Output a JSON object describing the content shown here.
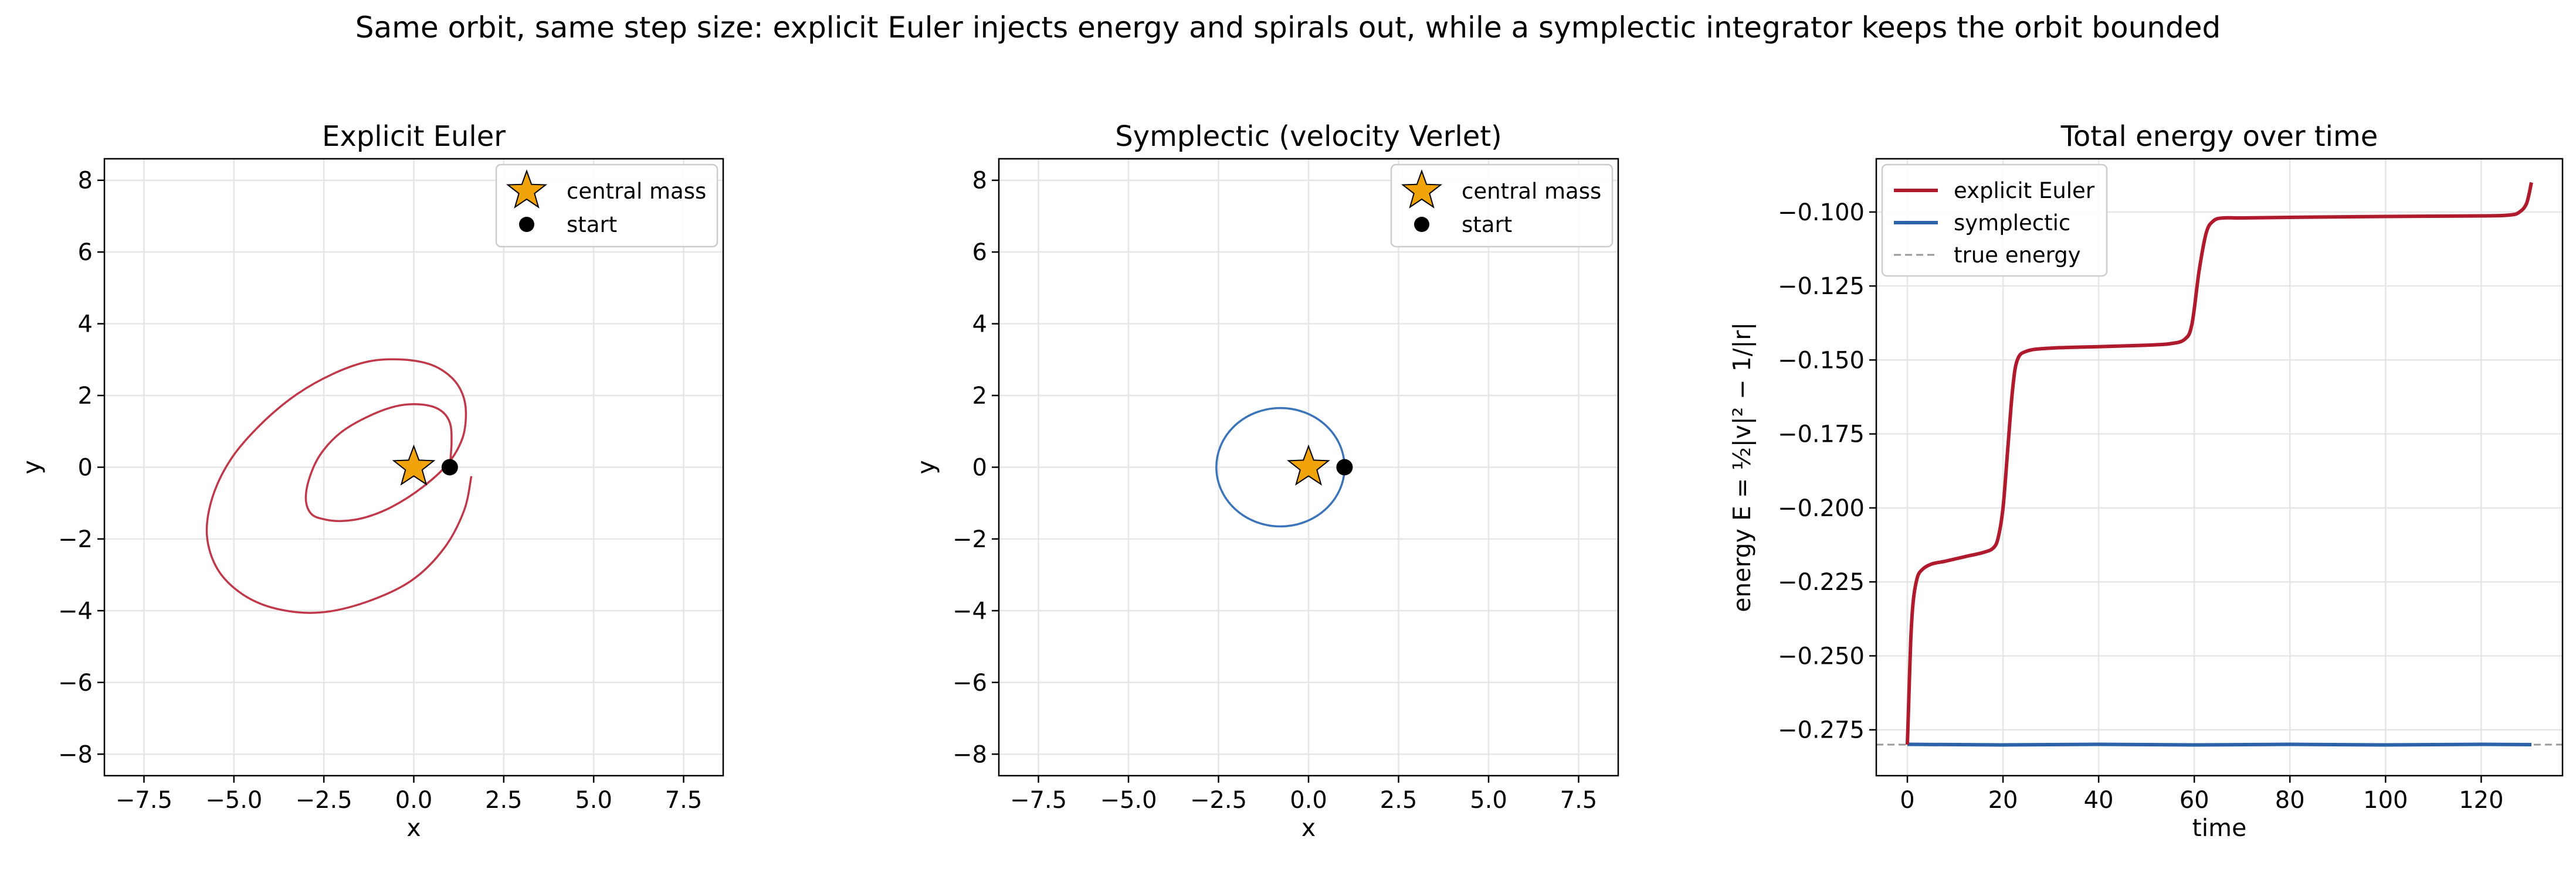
{
  "suptitle": "Same orbit, same step size: explicit Euler injects energy and spirals out, while a symplectic integrator keeps the orbit bounded",
  "colors": {
    "euler_orbit": "#c0394a",
    "symplectic_orbit": "#3b74b8",
    "euler_energy": "#b01a2d",
    "symplectic_energy": "#2c62a8",
    "true_energy": "#999999",
    "star": "#f0a30a",
    "grid": "#e6e6e6"
  },
  "chart_data": [
    {
      "type": "line",
      "title": "Explicit Euler",
      "xlabel": "x",
      "ylabel": "y",
      "xlim": [
        -8.6,
        8.6
      ],
      "ylim": [
        -8.6,
        8.6
      ],
      "xticks": [
        -7.5,
        -5.0,
        -2.5,
        0.0,
        2.5,
        5.0,
        7.5
      ],
      "xtick_labels": [
        "−7.5",
        "−5.0",
        "−2.5",
        "0.0",
        "2.5",
        "5.0",
        "7.5"
      ],
      "yticks": [
        -8,
        -6,
        -4,
        -2,
        0,
        2,
        4,
        6,
        8
      ],
      "ytick_labels": [
        "−8",
        "−6",
        "−4",
        "−2",
        "0",
        "2",
        "4",
        "6",
        "8"
      ],
      "grid": true,
      "legend": {
        "placement": "top-right",
        "entries": [
          "central mass",
          "start"
        ]
      },
      "central_mass": [
        0,
        0
      ],
      "start": [
        1,
        0
      ],
      "orbit": {
        "name": "explicit Euler",
        "x": [
          1.0,
          1.05,
          1.0,
          0.72,
          0.2,
          -0.5,
          -1.3,
          -2.05,
          -2.6,
          -2.9,
          -3.0,
          -2.85,
          -2.5,
          -2.0,
          -1.35,
          -0.6,
          0.25,
          0.95,
          1.35,
          1.45,
          1.35,
          1.05,
          0.5,
          -0.3,
          -1.25,
          -2.25,
          -3.3,
          -4.3,
          -5.1,
          -5.6,
          -5.75,
          -5.45,
          -4.75,
          -3.8,
          -2.6,
          -1.3,
          -0.05,
          0.85,
          1.4,
          1.6
        ],
        "y": [
          0.0,
          0.7,
          1.25,
          1.6,
          1.75,
          1.7,
          1.4,
          0.95,
          0.35,
          -0.3,
          -0.9,
          -1.3,
          -1.45,
          -1.5,
          -1.4,
          -1.1,
          -0.55,
          0.1,
          0.8,
          1.5,
          2.05,
          2.5,
          2.85,
          3.0,
          2.95,
          2.6,
          2.0,
          1.15,
          0.2,
          -0.85,
          -1.9,
          -2.85,
          -3.55,
          -3.95,
          -4.05,
          -3.75,
          -3.15,
          -2.25,
          -1.2,
          -0.25
        ]
      }
    },
    {
      "type": "line",
      "title": "Symplectic (velocity Verlet)",
      "xlabel": "x",
      "ylabel": "y",
      "xlim": [
        -8.6,
        8.6
      ],
      "ylim": [
        -8.6,
        8.6
      ],
      "xticks": [
        -7.5,
        -5.0,
        -2.5,
        0.0,
        2.5,
        5.0,
        7.5
      ],
      "xtick_labels": [
        "−7.5",
        "−5.0",
        "−2.5",
        "0.0",
        "2.5",
        "5.0",
        "7.5"
      ],
      "yticks": [
        -8,
        -6,
        -4,
        -2,
        0,
        2,
        4,
        6,
        8
      ],
      "ytick_labels": [
        "−8",
        "−6",
        "−4",
        "−2",
        "0",
        "2",
        "4",
        "6",
        "8"
      ],
      "grid": true,
      "legend": {
        "placement": "top-right",
        "entries": [
          "central mass",
          "start"
        ]
      },
      "central_mass": [
        0,
        0
      ],
      "start": [
        1,
        0
      ],
      "orbit": {
        "name": "symplectic",
        "shape": "ellipse",
        "center": [
          -0.78,
          0.0
        ],
        "semi_axes": [
          1.78,
          1.65
        ]
      }
    },
    {
      "type": "line",
      "title": "Total energy over time",
      "xlabel": "time",
      "ylabel": "energy  E = ½|v|² − 1/|r|",
      "xlim": [
        -6.5,
        137
      ],
      "ylim": [
        -0.2905,
        -0.082
      ],
      "xticks": [
        0,
        20,
        40,
        60,
        80,
        100,
        120
      ],
      "xtick_labels": [
        "0",
        "20",
        "40",
        "60",
        "80",
        "100",
        "120"
      ],
      "yticks": [
        -0.275,
        -0.25,
        -0.225,
        -0.2,
        -0.175,
        -0.15,
        -0.125,
        -0.1
      ],
      "ytick_labels": [
        "−0.275",
        "−0.250",
        "−0.225",
        "−0.200",
        "−0.175",
        "−0.150",
        "−0.125",
        "−0.100"
      ],
      "grid": true,
      "legend": {
        "placement": "top-left",
        "entries": [
          "explicit Euler",
          "symplectic",
          "true energy"
        ]
      },
      "series": [
        {
          "name": "explicit Euler",
          "x": [
            0,
            0.3,
            0.7,
            1.2,
            2,
            3,
            5,
            8,
            12,
            16,
            18,
            19,
            20,
            21,
            22,
            23,
            25,
            30,
            40,
            50,
            55,
            58,
            59.5,
            61,
            62.5,
            64,
            66,
            70,
            80,
            100,
            120,
            126,
            128,
            129.5,
            130.5
          ],
          "values": [
            -0.28,
            -0.265,
            -0.245,
            -0.232,
            -0.224,
            -0.221,
            -0.219,
            -0.218,
            -0.2165,
            -0.215,
            -0.2135,
            -0.21,
            -0.2,
            -0.18,
            -0.16,
            -0.15,
            -0.147,
            -0.146,
            -0.1455,
            -0.145,
            -0.1445,
            -0.143,
            -0.138,
            -0.12,
            -0.107,
            -0.103,
            -0.102,
            -0.102,
            -0.1018,
            -0.1015,
            -0.1013,
            -0.101,
            -0.1,
            -0.097,
            -0.09
          ]
        },
        {
          "name": "symplectic",
          "x": [
            0,
            20,
            40,
            60,
            80,
            100,
            120,
            130.5
          ],
          "values": [
            -0.2799,
            -0.2801,
            -0.2799,
            -0.2801,
            -0.2799,
            -0.2801,
            -0.2799,
            -0.28
          ]
        },
        {
          "name": "true energy",
          "value": -0.28
        }
      ]
    }
  ]
}
